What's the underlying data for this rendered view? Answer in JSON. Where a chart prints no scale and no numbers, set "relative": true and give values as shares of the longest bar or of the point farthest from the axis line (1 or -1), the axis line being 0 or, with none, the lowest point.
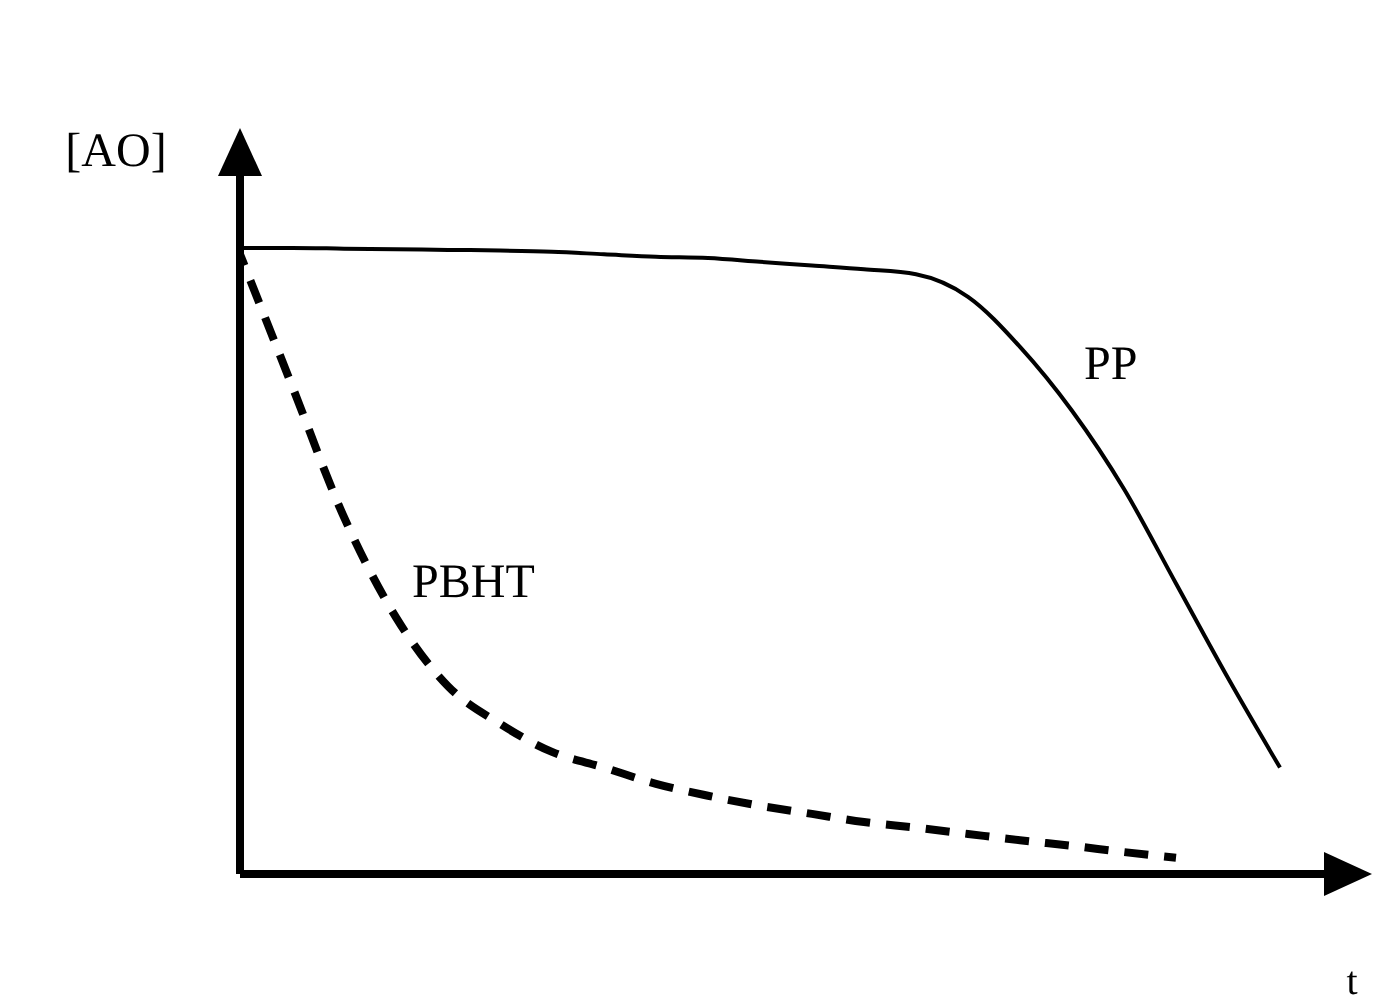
{
  "chart_data": {
    "type": "line",
    "relative": true,
    "xlabel": "t",
    "ylabel": "[AO]",
    "legend": false,
    "marker": "none",
    "categories": [
      null,
      null,
      null,
      null,
      null,
      null,
      null,
      null,
      null,
      null,
      null,
      null,
      null,
      null,
      null,
      null,
      null,
      null,
      null,
      null,
      null
    ],
    "series": [
      {
        "name": "PP",
        "color": "#000000",
        "line_style": "solid",
        "values": [
          1.0,
          1.0,
          0.999,
          0.998,
          0.997,
          0.996,
          0.994,
          0.99,
          0.986,
          0.984,
          0.978,
          0.972,
          0.966,
          0.958,
          0.922,
          0.842,
          0.74,
          0.615,
          0.464,
          0.313,
          0.17
        ]
      },
      {
        "name": "PBHT",
        "color": "#000000",
        "line_style": "dashed",
        "values": [
          0.99,
          0.78,
          0.57,
          0.41,
          0.3,
          0.24,
          0.195,
          0.17,
          0.144,
          0.125,
          0.109,
          0.096,
          0.083,
          0.074,
          0.064,
          0.054,
          0.045,
          0.035,
          0.026,
          null,
          null
        ]
      }
    ]
  }
}
